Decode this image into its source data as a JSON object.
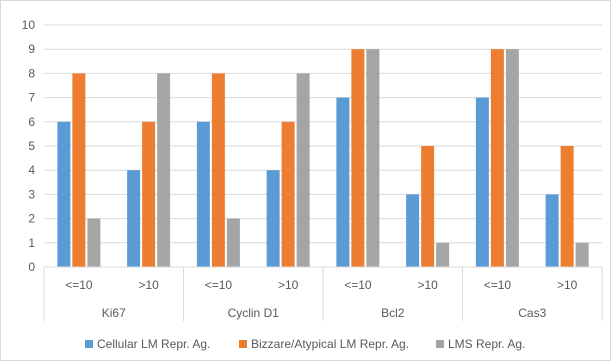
{
  "chart_data": {
    "type": "bar",
    "title": "",
    "xlabel": "",
    "ylabel": "",
    "ylim": [
      0,
      10
    ],
    "yticks": [
      "0",
      "1",
      "2",
      "3",
      "4",
      "5",
      "6",
      "7",
      "8",
      "9",
      "10"
    ],
    "grid": "horizontal",
    "legend_position": "bottom",
    "groups": [
      "Ki67",
      "Cyclin D1",
      "Bcl2",
      "Cas3"
    ],
    "subcategories": [
      "<=10",
      ">10"
    ],
    "categories": [
      "<=10",
      ">10",
      "<=10",
      ">10",
      "<=10",
      ">10",
      "<=10",
      ">10"
    ],
    "series": [
      {
        "name": "Cellular LM Repr. Ag.",
        "color": "#5b9bd5",
        "values": [
          6,
          4,
          6,
          4,
          7,
          3,
          7,
          3
        ]
      },
      {
        "name": "Bizzare/Atypical LM Repr. Ag.",
        "color": "#ed7d31",
        "values": [
          8,
          6,
          8,
          6,
          9,
          5,
          9,
          5
        ]
      },
      {
        "name": "LMS Repr. Ag.",
        "color": "#a5a5a5",
        "values": [
          2,
          8,
          2,
          8,
          9,
          1,
          9,
          1
        ]
      }
    ]
  }
}
